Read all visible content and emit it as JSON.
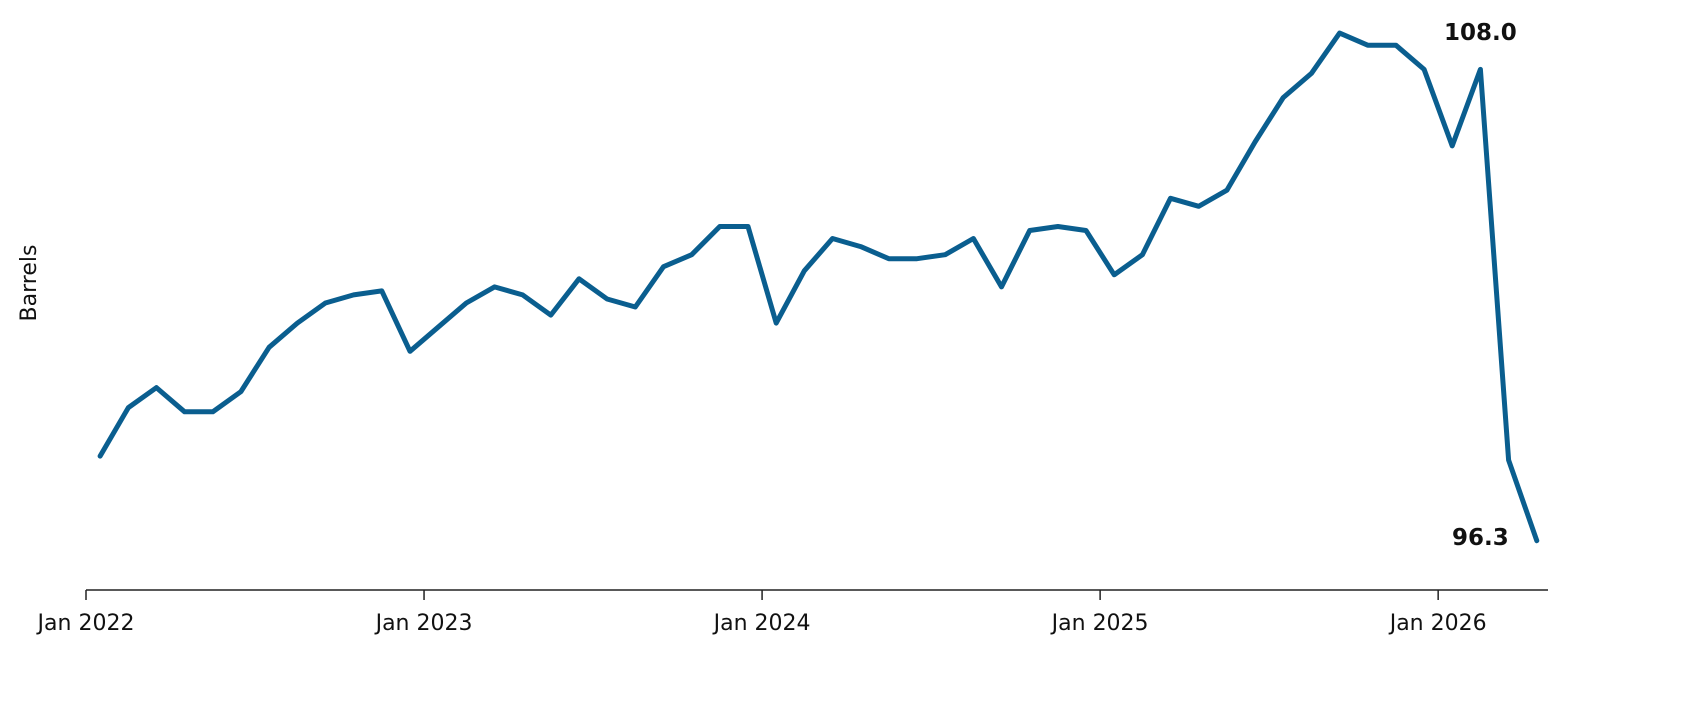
{
  "chart_data": {
    "type": "line",
    "y_label": "Barrels",
    "x": [
      "2022-01",
      "2022-02",
      "2022-03",
      "2022-04",
      "2022-05",
      "2022-06",
      "2022-07",
      "2022-08",
      "2022-09",
      "2022-10",
      "2022-11",
      "2022-12",
      "2023-01",
      "2023-02",
      "2023-03",
      "2023-04",
      "2023-05",
      "2023-06",
      "2023-07",
      "2023-08",
      "2023-09",
      "2023-10",
      "2023-11",
      "2023-12",
      "2024-01",
      "2024-02",
      "2024-03",
      "2024-04",
      "2024-05",
      "2024-06",
      "2024-07",
      "2024-08",
      "2024-09",
      "2024-10",
      "2024-11",
      "2024-12",
      "2025-01",
      "2025-02",
      "2025-03",
      "2025-04",
      "2025-05",
      "2025-06",
      "2025-07",
      "2025-08",
      "2025-09",
      "2025-10",
      "2025-11",
      "2025-12",
      "2026-01",
      "2026-02",
      "2026-03",
      "2026-04"
    ],
    "series": [
      {
        "name": "Barrels",
        "color": "#0a5e8f",
        "values": [
          98.4,
          99.6,
          100.1,
          99.5,
          99.5,
          100.0,
          101.1,
          101.7,
          102.2,
          102.4,
          102.5,
          101.0,
          101.6,
          102.2,
          102.6,
          102.4,
          101.9,
          102.8,
          102.3,
          102.1,
          103.1,
          103.4,
          104.1,
          104.1,
          101.7,
          103.0,
          103.8,
          103.6,
          103.3,
          103.3,
          103.4,
          103.8,
          102.6,
          104.0,
          104.1,
          104.0,
          102.9,
          103.4,
          104.8,
          104.6,
          105.0,
          106.2,
          107.3,
          107.9,
          108.9,
          108.6,
          108.6,
          108.0,
          106.1,
          108.0,
          98.3,
          96.3
        ],
        "value_labels": [
          null,
          null,
          null,
          null,
          null,
          null,
          null,
          null,
          null,
          null,
          null,
          null,
          null,
          null,
          null,
          null,
          null,
          null,
          null,
          null,
          null,
          null,
          null,
          null,
          null,
          null,
          null,
          null,
          null,
          null,
          null,
          null,
          null,
          null,
          null,
          null,
          null,
          null,
          null,
          null,
          null,
          null,
          null,
          null,
          null,
          null,
          null,
          null,
          null,
          "108.0",
          null,
          "96.3"
        ]
      }
    ],
    "xticks": [
      {
        "value": "2022-01",
        "label": "Jan 2022"
      },
      {
        "value": "2023-01",
        "label": "Jan 2023"
      },
      {
        "value": "2024-01",
        "label": "Jan 2024"
      },
      {
        "value": "2025-01",
        "label": "Jan 2025"
      },
      {
        "value": "2026-01",
        "label": "Jan 2026"
      }
    ],
    "ylim": [
      95.1,
      109.3
    ]
  }
}
